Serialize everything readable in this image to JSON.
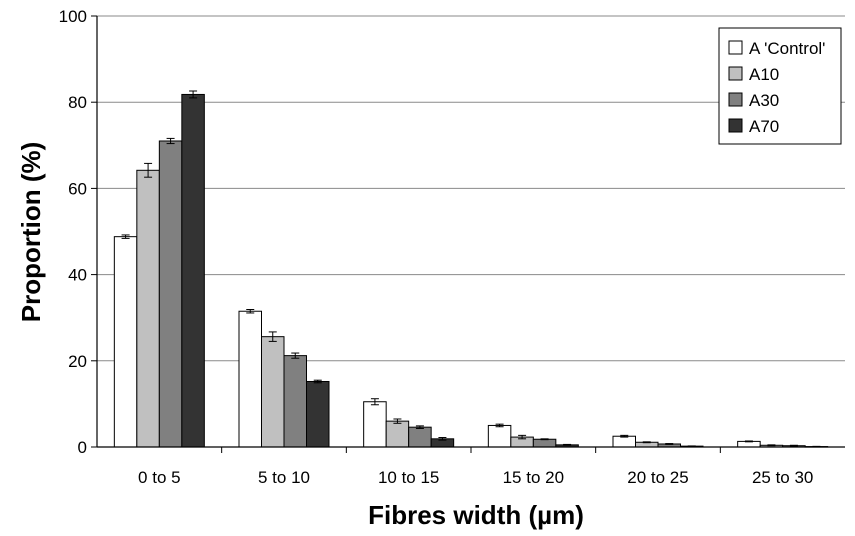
{
  "chart_data": {
    "type": "bar",
    "title": "",
    "xlabel": "Fibres width (µm)",
    "ylabel": "Proportion (%)",
    "ylim": [
      0,
      100
    ],
    "yticks": [
      "0",
      "20",
      "40",
      "60",
      "80",
      "100"
    ],
    "grid": true,
    "legend_position": "top-right",
    "categories": [
      "0 to 5",
      "5 to 10",
      "10 to 15",
      "15 to 20",
      "20 to 25",
      "25 to 30"
    ],
    "series": [
      {
        "name": "A 'Control'",
        "color": "#ffffff",
        "values": [
          48.8,
          31.5,
          10.5,
          5.0,
          2.5,
          1.3
        ],
        "errors": [
          0.4,
          0.4,
          0.7,
          0.3,
          0.2,
          0.1
        ]
      },
      {
        "name": "A10",
        "color": "#c0c0c0",
        "values": [
          64.2,
          25.6,
          6.0,
          2.3,
          1.1,
          0.4
        ],
        "errors": [
          1.6,
          1.1,
          0.5,
          0.4,
          0.1,
          0.1
        ]
      },
      {
        "name": "A30",
        "color": "#808080",
        "values": [
          71.0,
          21.2,
          4.6,
          1.8,
          0.7,
          0.3
        ],
        "errors": [
          0.6,
          0.6,
          0.3,
          0.1,
          0.1,
          0.1
        ]
      },
      {
        "name": "A70",
        "color": "#333333",
        "values": [
          81.8,
          15.2,
          1.9,
          0.5,
          0.2,
          0.1
        ],
        "errors": [
          0.8,
          0.3,
          0.3,
          0.1,
          0.05,
          0.05
        ]
      }
    ]
  }
}
